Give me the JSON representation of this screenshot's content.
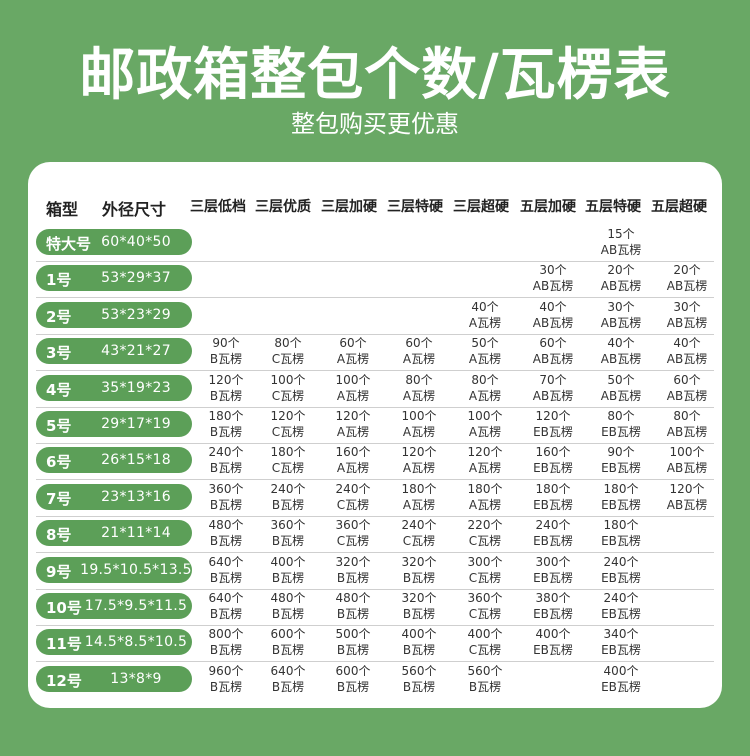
{
  "title": "邮政箱整包个数/瓦楞表",
  "subtitle": "整包购买更优惠",
  "colors": {
    "background": "#69a865",
    "pill": "#5c9f58",
    "card": "#ffffff"
  },
  "table": {
    "col_type": "箱型",
    "col_size": "外径尺寸",
    "grades": [
      "三层低档",
      "三层优质",
      "三层加硬",
      "三层特硬",
      "三层超硬",
      "五层加硬",
      "五层特硬",
      "五层超硬"
    ],
    "rows": [
      {
        "label": "特大号",
        "size": "60*40*50",
        "cells": [
          null,
          null,
          null,
          null,
          null,
          null,
          {
            "count": "15个",
            "grade": "AB瓦楞"
          },
          null
        ]
      },
      {
        "label": "1号",
        "size": "53*29*37",
        "cells": [
          null,
          null,
          null,
          null,
          null,
          {
            "count": "30个",
            "grade": "AB瓦楞"
          },
          {
            "count": "20个",
            "grade": "AB瓦楞"
          },
          {
            "count": "20个",
            "grade": "AB瓦楞"
          }
        ]
      },
      {
        "label": "2号",
        "size": "53*23*29",
        "cells": [
          null,
          null,
          null,
          null,
          {
            "count": "40个",
            "grade": "A瓦楞"
          },
          {
            "count": "40个",
            "grade": "AB瓦楞"
          },
          {
            "count": "30个",
            "grade": "AB瓦楞"
          },
          {
            "count": "30个",
            "grade": "AB瓦楞"
          }
        ]
      },
      {
        "label": "3号",
        "size": "43*21*27",
        "cells": [
          {
            "count": "90个",
            "grade": "B瓦楞"
          },
          {
            "count": "80个",
            "grade": "C瓦楞"
          },
          {
            "count": "60个",
            "grade": "A瓦楞"
          },
          {
            "count": "60个",
            "grade": "A瓦楞"
          },
          {
            "count": "50个",
            "grade": "A瓦楞"
          },
          {
            "count": "60个",
            "grade": "AB瓦楞"
          },
          {
            "count": "40个",
            "grade": "AB瓦楞"
          },
          {
            "count": "40个",
            "grade": "AB瓦楞"
          }
        ]
      },
      {
        "label": "4号",
        "size": "35*19*23",
        "cells": [
          {
            "count": "120个",
            "grade": "B瓦楞"
          },
          {
            "count": "100个",
            "grade": "C瓦楞"
          },
          {
            "count": "100个",
            "grade": "A瓦楞"
          },
          {
            "count": "80个",
            "grade": "A瓦楞"
          },
          {
            "count": "80个",
            "grade": "A瓦楞"
          },
          {
            "count": "70个",
            "grade": "AB瓦楞"
          },
          {
            "count": "50个",
            "grade": "AB瓦楞"
          },
          {
            "count": "60个",
            "grade": "AB瓦楞"
          }
        ]
      },
      {
        "label": "5号",
        "size": "29*17*19",
        "cells": [
          {
            "count": "180个",
            "grade": "B瓦楞"
          },
          {
            "count": "120个",
            "grade": "C瓦楞"
          },
          {
            "count": "120个",
            "grade": "A瓦楞"
          },
          {
            "count": "100个",
            "grade": "A瓦楞"
          },
          {
            "count": "100个",
            "grade": "A瓦楞"
          },
          {
            "count": "120个",
            "grade": "EB瓦楞"
          },
          {
            "count": "80个",
            "grade": "EB瓦楞"
          },
          {
            "count": "80个",
            "grade": "AB瓦楞"
          }
        ]
      },
      {
        "label": "6号",
        "size": "26*15*18",
        "cells": [
          {
            "count": "240个",
            "grade": "B瓦楞"
          },
          {
            "count": "180个",
            "grade": "C瓦楞"
          },
          {
            "count": "160个",
            "grade": "A瓦楞"
          },
          {
            "count": "120个",
            "grade": "A瓦楞"
          },
          {
            "count": "120个",
            "grade": "A瓦楞"
          },
          {
            "count": "160个",
            "grade": "EB瓦楞"
          },
          {
            "count": "90个",
            "grade": "EB瓦楞"
          },
          {
            "count": "100个",
            "grade": "AB瓦楞"
          }
        ]
      },
      {
        "label": "7号",
        "size": "23*13*16",
        "cells": [
          {
            "count": "360个",
            "grade": "B瓦楞"
          },
          {
            "count": "240个",
            "grade": "B瓦楞"
          },
          {
            "count": "240个",
            "grade": "C瓦楞"
          },
          {
            "count": "180个",
            "grade": "A瓦楞"
          },
          {
            "count": "180个",
            "grade": "A瓦楞"
          },
          {
            "count": "180个",
            "grade": "EB瓦楞"
          },
          {
            "count": "180个",
            "grade": "EB瓦楞"
          },
          {
            "count": "120个",
            "grade": "AB瓦楞"
          }
        ]
      },
      {
        "label": "8号",
        "size": "21*11*14",
        "cells": [
          {
            "count": "480个",
            "grade": "B瓦楞"
          },
          {
            "count": "360个",
            "grade": "B瓦楞"
          },
          {
            "count": "360个",
            "grade": "C瓦楞"
          },
          {
            "count": "240个",
            "grade": "C瓦楞"
          },
          {
            "count": "220个",
            "grade": "C瓦楞"
          },
          {
            "count": "240个",
            "grade": "EB瓦楞"
          },
          {
            "count": "180个",
            "grade": "EB瓦楞"
          },
          null
        ]
      },
      {
        "label": "9号",
        "size": "19.5*10.5*13.5",
        "cells": [
          {
            "count": "640个",
            "grade": "B瓦楞"
          },
          {
            "count": "400个",
            "grade": "B瓦楞"
          },
          {
            "count": "320个",
            "grade": "B瓦楞"
          },
          {
            "count": "320个",
            "grade": "B瓦楞"
          },
          {
            "count": "300个",
            "grade": "C瓦楞"
          },
          {
            "count": "300个",
            "grade": "EB瓦楞"
          },
          {
            "count": "240个",
            "grade": "EB瓦楞"
          },
          null
        ]
      },
      {
        "label": "10号",
        "size": "17.5*9.5*11.5",
        "cells": [
          {
            "count": "640个",
            "grade": "B瓦楞"
          },
          {
            "count": "480个",
            "grade": "B瓦楞"
          },
          {
            "count": "480个",
            "grade": "B瓦楞"
          },
          {
            "count": "320个",
            "grade": "B瓦楞"
          },
          {
            "count": "360个",
            "grade": "C瓦楞"
          },
          {
            "count": "380个",
            "grade": "EB瓦楞"
          },
          {
            "count": "240个",
            "grade": "EB瓦楞"
          },
          null
        ]
      },
      {
        "label": "11号",
        "size": "14.5*8.5*10.5",
        "cells": [
          {
            "count": "800个",
            "grade": "B瓦楞"
          },
          {
            "count": "600个",
            "grade": "B瓦楞"
          },
          {
            "count": "500个",
            "grade": "B瓦楞"
          },
          {
            "count": "400个",
            "grade": "B瓦楞"
          },
          {
            "count": "400个",
            "grade": "C瓦楞"
          },
          {
            "count": "400个",
            "grade": "EB瓦楞"
          },
          {
            "count": "340个",
            "grade": "EB瓦楞"
          },
          null
        ]
      },
      {
        "label": "12号",
        "size": "13*8*9",
        "cells": [
          {
            "count": "960个",
            "grade": "B瓦楞"
          },
          {
            "count": "640个",
            "grade": "B瓦楞"
          },
          {
            "count": "600个",
            "grade": "B瓦楞"
          },
          {
            "count": "560个",
            "grade": "B瓦楞"
          },
          {
            "count": "560个",
            "grade": "B瓦楞"
          },
          null,
          {
            "count": "400个",
            "grade": "EB瓦楞"
          },
          null
        ]
      }
    ]
  }
}
